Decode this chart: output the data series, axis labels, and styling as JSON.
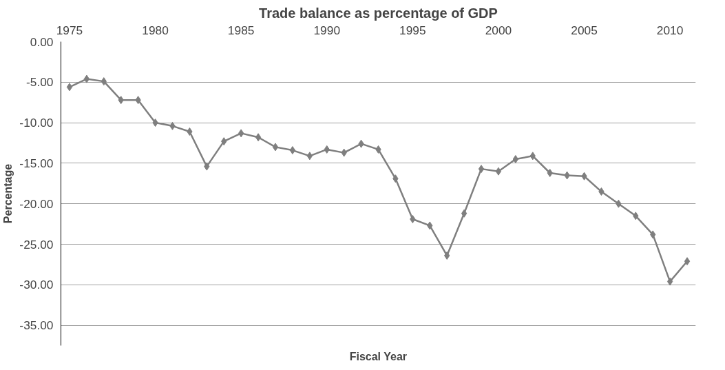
{
  "chart_data": {
    "type": "line",
    "title": "Trade balance as percentage of GDP",
    "xlabel": "Fiscal Year",
    "ylabel": "Percentage",
    "x": [
      1975,
      1976,
      1977,
      1978,
      1979,
      1980,
      1981,
      1982,
      1983,
      1984,
      1985,
      1986,
      1987,
      1988,
      1989,
      1990,
      1991,
      1992,
      1993,
      1994,
      1995,
      1996,
      1997,
      1998,
      1999,
      2000,
      2001,
      2002,
      2003,
      2004,
      2005,
      2006,
      2007,
      2008,
      2009,
      2010,
      2011
    ],
    "series": [
      {
        "color": "#7f7f7f",
        "values": [
          -5.6,
          -4.6,
          -4.9,
          -7.2,
          -7.2,
          -10.0,
          -10.4,
          -11.1,
          -15.4,
          -12.3,
          -11.3,
          -11.8,
          -13.0,
          -13.4,
          -14.1,
          -13.3,
          -13.7,
          -12.6,
          -13.3,
          -16.9,
          -21.9,
          -22.7,
          -26.4,
          -21.2,
          -15.7,
          -16.0,
          -14.5,
          -14.1,
          -16.2,
          -16.5,
          -16.6,
          -18.5,
          -20.0,
          -21.5,
          -23.8,
          -29.6,
          -27.1
        ]
      }
    ],
    "xlim": [
      1974.5,
      2011.5
    ],
    "xticks": [
      1975,
      1980,
      1985,
      1990,
      1995,
      2000,
      2005,
      2010
    ],
    "ylim": [
      -37.5,
      0
    ],
    "yticks": [
      {
        "value": 0,
        "label": "0.00"
      },
      {
        "value": -5,
        "label": "-5.00"
      },
      {
        "value": -10,
        "label": "-10.00"
      },
      {
        "value": -15,
        "label": "-15.00"
      },
      {
        "value": -20,
        "label": "-20.00"
      },
      {
        "value": -25,
        "label": "-25.00"
      },
      {
        "value": -30,
        "label": "-30.00"
      },
      {
        "value": -35,
        "label": "-35.00"
      }
    ],
    "grid": "y",
    "marker": "diamond",
    "line_style": "solid"
  }
}
